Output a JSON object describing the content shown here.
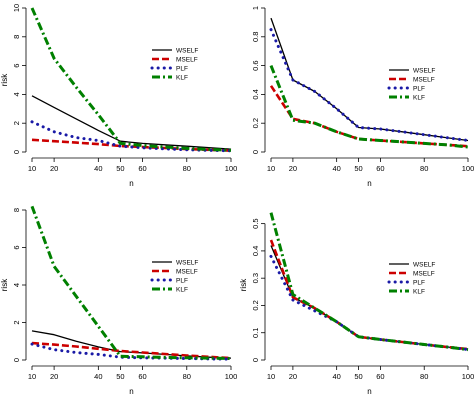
{
  "chart_data": [
    {
      "type": "line",
      "xlabel": "n",
      "ylabel": "risk",
      "xlim": [
        10,
        100
      ],
      "ylim": [
        0,
        10
      ],
      "xticks": [
        10,
        20,
        40,
        50,
        60,
        80,
        100
      ],
      "yticks": [
        0,
        2,
        4,
        6,
        8,
        10
      ],
      "legend_position": "right",
      "x": [
        10,
        20,
        30,
        40,
        50,
        60,
        70,
        80,
        90,
        100
      ],
      "series": [
        {
          "name": "WSELF",
          "color": "#000000",
          "style": "solid",
          "values": [
            3.9,
            3.1,
            2.3,
            1.5,
            0.75,
            0.6,
            0.5,
            0.4,
            0.3,
            0.2
          ]
        },
        {
          "name": "MSELF",
          "color": "#cc0000",
          "style": "dashed",
          "values": [
            0.85,
            0.75,
            0.65,
            0.55,
            0.42,
            0.35,
            0.28,
            0.2,
            0.15,
            0.1
          ]
        },
        {
          "name": "PLF",
          "color": "#1a1aa6",
          "style": "dotted",
          "values": [
            2.1,
            1.4,
            1.0,
            0.8,
            0.4,
            0.3,
            0.22,
            0.16,
            0.12,
            0.08
          ]
        },
        {
          "name": "KLF",
          "color": "#008000",
          "style": "dashdot",
          "values": [
            10.0,
            6.5,
            4.5,
            2.6,
            0.6,
            0.45,
            0.35,
            0.25,
            0.18,
            0.12
          ]
        }
      ]
    },
    {
      "type": "line",
      "xlabel": "n",
      "ylabel": "",
      "xlim": [
        10,
        100
      ],
      "ylim": [
        0,
        1.0
      ],
      "xticks": [
        10,
        20,
        40,
        50,
        60,
        80,
        100
      ],
      "yticks": [
        0.0,
        0.2,
        0.4,
        0.6,
        0.8,
        1.0
      ],
      "legend_position": "right",
      "x": [
        10,
        20,
        30,
        40,
        50,
        60,
        70,
        80,
        90,
        100
      ],
      "series": [
        {
          "name": "WSELF",
          "color": "#000000",
          "style": "solid",
          "values": [
            0.93,
            0.5,
            0.42,
            0.3,
            0.17,
            0.16,
            0.14,
            0.12,
            0.1,
            0.08
          ]
        },
        {
          "name": "MSELF",
          "color": "#cc0000",
          "style": "dashed",
          "values": [
            0.46,
            0.23,
            0.2,
            0.14,
            0.09,
            0.08,
            0.07,
            0.06,
            0.05,
            0.04
          ]
        },
        {
          "name": "PLF",
          "color": "#1a1aa6",
          "style": "dotted",
          "values": [
            0.85,
            0.5,
            0.42,
            0.3,
            0.17,
            0.16,
            0.14,
            0.12,
            0.1,
            0.08
          ]
        },
        {
          "name": "KLF",
          "color": "#008000",
          "style": "dashdot",
          "values": [
            0.6,
            0.22,
            0.2,
            0.14,
            0.09,
            0.08,
            0.07,
            0.06,
            0.05,
            0.035
          ]
        }
      ]
    },
    {
      "type": "line",
      "xlabel": "n",
      "ylabel": "risk",
      "xlim": [
        10,
        100
      ],
      "ylim": [
        0,
        8
      ],
      "xticks": [
        10,
        20,
        40,
        50,
        60,
        80,
        100
      ],
      "yticks": [
        0,
        2,
        4,
        6,
        8
      ],
      "legend_position": "right",
      "x": [
        10,
        20,
        30,
        40,
        50,
        60,
        70,
        80,
        90,
        100
      ],
      "series": [
        {
          "name": "WSELF",
          "color": "#000000",
          "style": "solid",
          "values": [
            1.55,
            1.35,
            1.0,
            0.7,
            0.45,
            0.38,
            0.3,
            0.22,
            0.15,
            0.1
          ]
        },
        {
          "name": "MSELF",
          "color": "#cc0000",
          "style": "dashed",
          "values": [
            0.9,
            0.82,
            0.72,
            0.6,
            0.48,
            0.4,
            0.32,
            0.24,
            0.17,
            0.1
          ]
        },
        {
          "name": "PLF",
          "color": "#1a1aa6",
          "style": "dotted",
          "values": [
            0.85,
            0.55,
            0.4,
            0.3,
            0.15,
            0.12,
            0.1,
            0.08,
            0.06,
            0.05
          ]
        },
        {
          "name": "KLF",
          "color": "#008000",
          "style": "dashdot",
          "values": [
            8.2,
            5.0,
            3.4,
            1.8,
            0.2,
            0.17,
            0.14,
            0.12,
            0.1,
            0.08
          ]
        }
      ]
    },
    {
      "type": "line",
      "xlabel": "n",
      "ylabel": "risk",
      "xlim": [
        10,
        100
      ],
      "ylim": [
        0,
        0.55
      ],
      "xticks": [
        10,
        20,
        40,
        50,
        60,
        80,
        100
      ],
      "yticks": [
        0.0,
        0.1,
        0.2,
        0.3,
        0.4,
        0.5
      ],
      "legend_position": "right",
      "x": [
        10,
        20,
        30,
        40,
        50,
        60,
        70,
        80,
        90,
        100
      ],
      "series": [
        {
          "name": "WSELF",
          "color": "#000000",
          "style": "solid",
          "values": [
            0.42,
            0.23,
            0.19,
            0.14,
            0.085,
            0.075,
            0.066,
            0.057,
            0.048,
            0.04
          ]
        },
        {
          "name": "MSELF",
          "color": "#cc0000",
          "style": "dashed",
          "values": [
            0.44,
            0.23,
            0.19,
            0.14,
            0.085,
            0.075,
            0.066,
            0.057,
            0.048,
            0.04
          ]
        },
        {
          "name": "PLF",
          "color": "#1a1aa6",
          "style": "dotted",
          "values": [
            0.38,
            0.22,
            0.18,
            0.14,
            0.085,
            0.075,
            0.066,
            0.057,
            0.048,
            0.038
          ]
        },
        {
          "name": "KLF",
          "color": "#008000",
          "style": "dashdot",
          "values": [
            0.54,
            0.24,
            0.19,
            0.14,
            0.085,
            0.075,
            0.066,
            0.057,
            0.048,
            0.038
          ]
        }
      ]
    }
  ]
}
